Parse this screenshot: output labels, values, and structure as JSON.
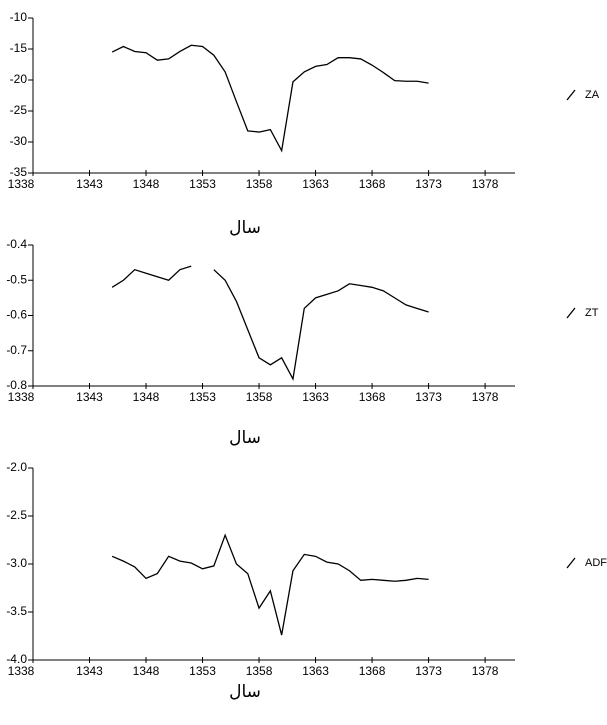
{
  "chart_data": [
    {
      "type": "line",
      "x_label": "سال",
      "xlim": [
        1338,
        1381
      ],
      "xticks": [
        1338,
        1343,
        1348,
        1353,
        1358,
        1363,
        1368,
        1373,
        1378
      ],
      "ylim": [
        -35,
        -10
      ],
      "yticks": [
        -10,
        -15,
        -20,
        -25,
        -30,
        -35
      ],
      "x": [
        1345,
        1346,
        1347,
        1348,
        1349,
        1350,
        1351,
        1352,
        1353,
        1354,
        1355,
        1356,
        1357,
        1358,
        1359,
        1360,
        1361,
        1362,
        1363,
        1364,
        1365,
        1366,
        1367,
        1368,
        1369,
        1370,
        1371,
        1372,
        1373
      ],
      "series": [
        {
          "name": "ZA",
          "color": "#000000",
          "values": [
            -15.5,
            -14.6,
            -15.4,
            -15.6,
            -16.8,
            -16.6,
            -15.4,
            -14.4,
            -14.6,
            -16.0,
            -18.7,
            -23.5,
            -28.2,
            -28.4,
            -28.0,
            -31.4,
            -20.3,
            -18.7,
            -17.8,
            -17.5,
            -16.4,
            -16.4,
            -16.6,
            -17.6,
            -18.8,
            -20.1,
            -20.2,
            -20.2,
            -20.5
          ]
        }
      ]
    },
    {
      "type": "line",
      "x_label": "سال",
      "xlim": [
        1338,
        1381
      ],
      "xticks": [
        1338,
        1343,
        1348,
        1353,
        1358,
        1363,
        1368,
        1373,
        1378
      ],
      "ylim": [
        -0.8,
        -0.4
      ],
      "yticks": [
        -0.4,
        -0.5,
        -0.6,
        -0.7,
        -0.8
      ],
      "x": [
        1345,
        1346,
        1347,
        1348,
        1349,
        1350,
        1351,
        1352,
        1353,
        1354,
        1355,
        1356,
        1357,
        1358,
        1359,
        1360,
        1361,
        1362,
        1363,
        1364,
        1365,
        1366,
        1367,
        1368,
        1369,
        1370,
        1371,
        1372,
        1373
      ],
      "series": [
        {
          "name": "ZT",
          "color": "#000000",
          "values": [
            -0.52,
            -0.5,
            -0.47,
            -0.48,
            -0.49,
            -0.5,
            -0.47,
            -0.46,
            null,
            -0.47,
            -0.5,
            -0.56,
            -0.64,
            -0.72,
            -0.74,
            -0.72,
            -0.78,
            -0.58,
            -0.55,
            -0.54,
            -0.53,
            -0.51,
            -0.515,
            -0.52,
            -0.53,
            -0.55,
            -0.57,
            -0.58,
            -0.59
          ]
        }
      ]
    },
    {
      "type": "line",
      "x_label": "سال",
      "xlim": [
        1338,
        1381
      ],
      "xticks": [
        1338,
        1343,
        1348,
        1353,
        1358,
        1363,
        1368,
        1373,
        1378
      ],
      "ylim": [
        -4,
        -2
      ],
      "yticks": [
        {
          "value": -2,
          "label": "-2.0"
        },
        -2.5,
        {
          "value": -3,
          "label": "-3.0"
        },
        -3.5,
        {
          "value": -4,
          "label": "-4.0"
        }
      ],
      "x": [
        1345,
        1346,
        1347,
        1348,
        1349,
        1350,
        1351,
        1352,
        1353,
        1354,
        1355,
        1356,
        1357,
        1358,
        1359,
        1360,
        1361,
        1362,
        1363,
        1364,
        1365,
        1366,
        1367,
        1368,
        1369,
        1370,
        1371,
        1372,
        1373
      ],
      "series": [
        {
          "name": "ADFB",
          "color": "#000000",
          "values": [
            -2.92,
            -2.97,
            -3.03,
            -3.15,
            -3.1,
            -2.92,
            -2.97,
            -2.99,
            -3.05,
            -3.02,
            -2.7,
            -3.0,
            -3.1,
            -3.46,
            -3.28,
            -3.74,
            -3.07,
            -2.9,
            -2.92,
            -2.98,
            -3.0,
            -3.07,
            -3.17,
            -3.16,
            -3.17,
            -3.18,
            -3.17,
            -3.15,
            -3.16
          ]
        }
      ]
    }
  ]
}
